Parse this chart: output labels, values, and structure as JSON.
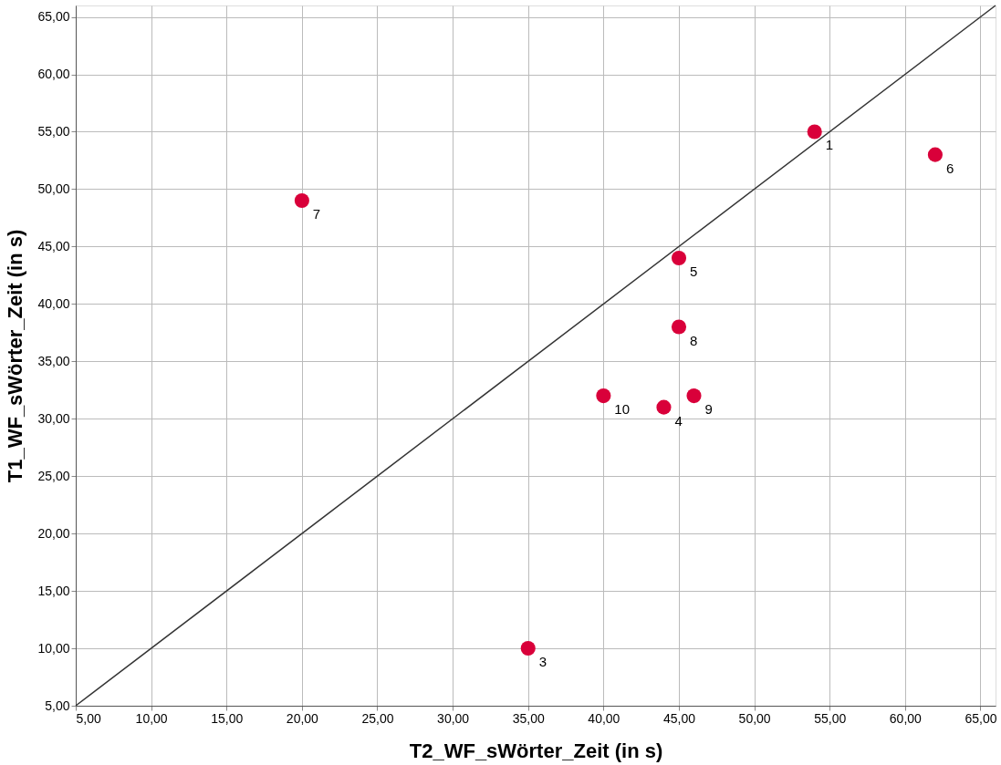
{
  "chart_data": {
    "type": "scatter",
    "xlabel": "T2_WF_sWörter_Zeit (in s)",
    "ylabel": "T1_WF_sWörter_Zeit (in s)",
    "xlim": [
      5,
      66
    ],
    "ylim": [
      5,
      66
    ],
    "xticks": [
      {
        "value": 5,
        "label": "5,00"
      },
      {
        "value": 10,
        "label": "10,00"
      },
      {
        "value": 15,
        "label": "15,00"
      },
      {
        "value": 20,
        "label": "20,00"
      },
      {
        "value": 25,
        "label": "25,00"
      },
      {
        "value": 30,
        "label": "30,00"
      },
      {
        "value": 35,
        "label": "35,00"
      },
      {
        "value": 40,
        "label": "40,00"
      },
      {
        "value": 45,
        "label": "45,00"
      },
      {
        "value": 50,
        "label": "50,00"
      },
      {
        "value": 55,
        "label": "55,00"
      },
      {
        "value": 60,
        "label": "60,00"
      },
      {
        "value": 65,
        "label": "65,00"
      }
    ],
    "yticks": [
      {
        "value": 5,
        "label": "5,00"
      },
      {
        "value": 10,
        "label": "10,00"
      },
      {
        "value": 15,
        "label": "15,00"
      },
      {
        "value": 20,
        "label": "20,00"
      },
      {
        "value": 25,
        "label": "25,00"
      },
      {
        "value": 30,
        "label": "30,00"
      },
      {
        "value": 35,
        "label": "35,00"
      },
      {
        "value": 40,
        "label": "40,00"
      },
      {
        "value": 45,
        "label": "45,00"
      },
      {
        "value": 50,
        "label": "50,00"
      },
      {
        "value": 55,
        "label": "55,00"
      },
      {
        "value": 60,
        "label": "60,00"
      },
      {
        "value": 65,
        "label": "65,00"
      }
    ],
    "grid": true,
    "series": [
      {
        "marker": "circle",
        "color": "#d9003a",
        "x": [
          54,
          62,
          20,
          45,
          45,
          40,
          44,
          46,
          35
        ],
        "values": [
          55,
          53,
          49,
          44,
          38,
          32,
          31,
          32,
          10
        ]
      },
      {
        "type": "line",
        "marker": "none",
        "line_style": "solid",
        "color": "#333333",
        "x": [
          5,
          66
        ],
        "values": [
          5,
          66
        ]
      }
    ],
    "annotations": [
      {
        "text": "1",
        "x": 54,
        "y": 55
      },
      {
        "text": "6",
        "x": 62,
        "y": 53
      },
      {
        "text": "7",
        "x": 20,
        "y": 49
      },
      {
        "text": "5",
        "x": 45,
        "y": 44
      },
      {
        "text": "8",
        "x": 45,
        "y": 38
      },
      {
        "text": "10",
        "x": 40,
        "y": 32
      },
      {
        "text": "4",
        "x": 44,
        "y": 31
      },
      {
        "text": "9",
        "x": 46,
        "y": 32
      },
      {
        "text": "3",
        "x": 35,
        "y": 10
      }
    ]
  }
}
